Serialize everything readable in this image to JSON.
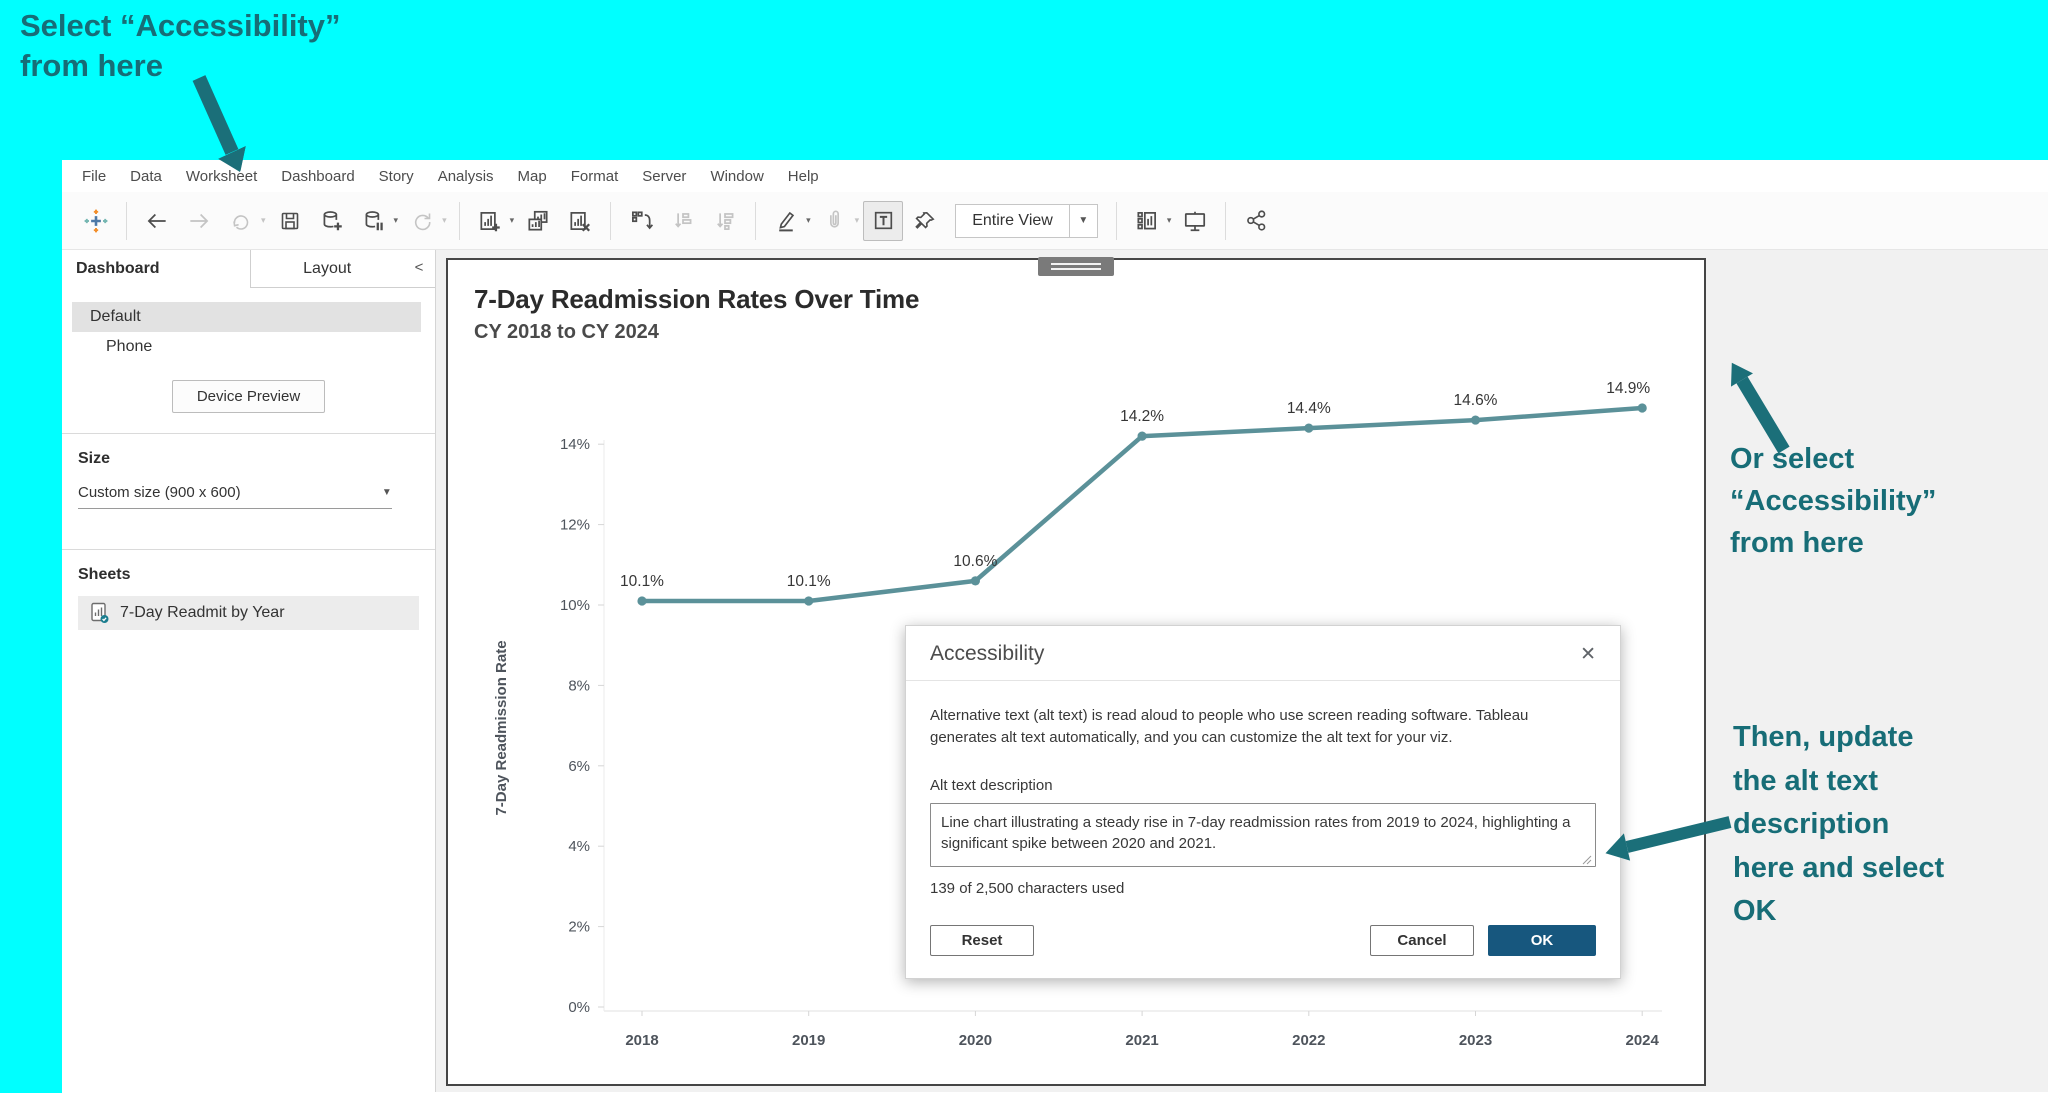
{
  "annotations": {
    "color": "#176d77",
    "top_left": {
      "line1": "Select “Accessibility”",
      "line2": "from here"
    },
    "right_middle": {
      "line1": "Or select",
      "line2": "“Accessibility”",
      "line3": "from here"
    },
    "right_bottom": {
      "line1": "Then, update",
      "line2": "the alt text",
      "line3": "description",
      "line4": "here and select",
      "line5": "OK"
    }
  },
  "menu": {
    "items": [
      "File",
      "Data",
      "Worksheet",
      "Dashboard",
      "Story",
      "Analysis",
      "Map",
      "Format",
      "Server",
      "Window",
      "Help"
    ]
  },
  "toolbar": {
    "view_mode": "Entire View",
    "icons": [
      "tableau-logo",
      "undo",
      "redo",
      "replay",
      "save",
      "add-data",
      "pause-auto-updates",
      "refresh",
      "new-worksheet",
      "duplicate-sheet",
      "clear-sheet",
      "swap-rows-columns",
      "sort-ascending",
      "sort-descending",
      "highlight",
      "group",
      "show-mark-labels",
      "fix-axes-pin",
      "show-hide-cards",
      "presentation-mode",
      "share"
    ]
  },
  "sidebar": {
    "tabs": {
      "dashboard": "Dashboard",
      "layout": "Layout"
    },
    "collapse_chevron": "<",
    "device_items": [
      "Default",
      "Phone"
    ],
    "device_preview_button": "Device Preview",
    "size": {
      "heading": "Size",
      "value": "Custom size (900 x 600)"
    },
    "sheets": {
      "heading": "Sheets",
      "items": [
        "7-Day Readmit by Year"
      ]
    }
  },
  "dashboard": {
    "title": "7-Day Readmission Rates Over Time",
    "subtitle": "CY 2018 to CY 2024"
  },
  "chart_data": {
    "type": "line",
    "title": "7-Day Readmission Rates Over Time",
    "subtitle": "CY 2018 to CY 2024",
    "categories": [
      "2018",
      "2019",
      "2020",
      "2021",
      "2022",
      "2023",
      "2024"
    ],
    "values": [
      10.1,
      10.1,
      10.6,
      14.2,
      14.4,
      14.6,
      14.9
    ],
    "labels": [
      "10.1%",
      "10.1%",
      "10.6%",
      "14.2%",
      "14.4%",
      "14.6%",
      "14.9%"
    ],
    "xlabel": "",
    "ylabel": "7-Day Readmission Rate",
    "ylim": [
      0,
      16
    ],
    "yticks": [
      "0%",
      "2%",
      "4%",
      "6%",
      "8%",
      "10%",
      "12%",
      "14%"
    ],
    "grid": false,
    "legend_position": "none",
    "line_color": "#5b9199"
  },
  "dialog": {
    "title": "Accessibility",
    "body": "Alternative text (alt text) is read aloud to people who use screen reading software. Tableau generates alt text automatically, and you can customize the alt text for your viz.",
    "field_label": "Alt text description",
    "field_value": "Line chart illustrating a steady rise in 7-day readmission rates from 2019 to 2024, highlighting a significant spike between 2020 and 2021.",
    "char_count": "139 of 2,500 characters used",
    "buttons": {
      "reset": "Reset",
      "cancel": "Cancel",
      "ok": "OK"
    }
  }
}
